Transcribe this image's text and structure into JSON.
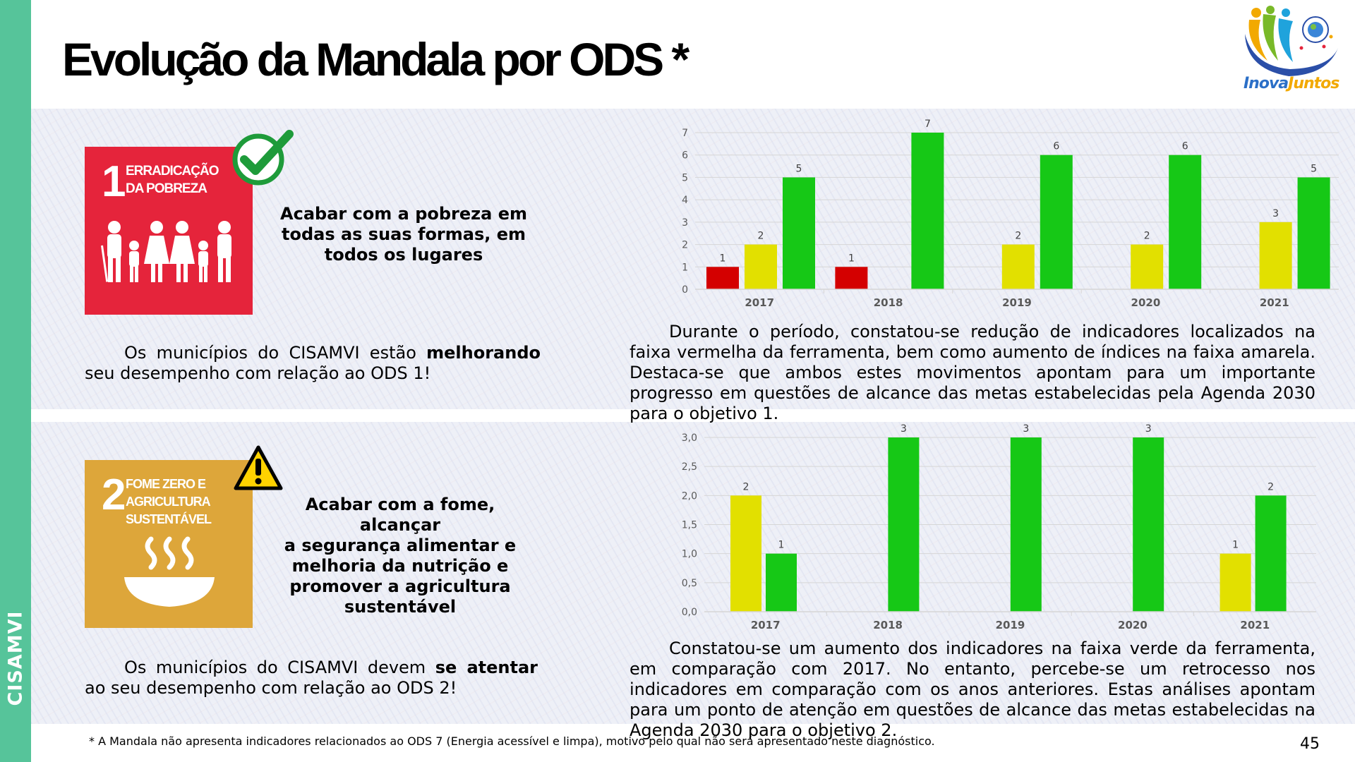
{
  "sidebar": {
    "label": "CISAMVI",
    "color": "#56c49a"
  },
  "title": "Evolução da Mandala por ODS *",
  "logo": {
    "text_a": "Inova",
    "text_b": "Juntos"
  },
  "sections": [
    {
      "ods_number": "1",
      "ods_name_line1": "Erradicação",
      "ods_name_line2": "da pobreza",
      "ods_color": "#e5243b",
      "status_icon": "checkmark-icon",
      "goal_text_lines": [
        "Acabar com a pobreza em",
        "todas as suas formas, em",
        "todos os lugares"
      ],
      "summary_before": "Os municípios do CISAMVI estão ",
      "summary_bold": "melhorando",
      "summary_after": " seu desempenho com relação ao ODS 1!",
      "analysis": "Durante o período, constatou-se redução de indicadores localizados na faixa vermelha da ferramenta, bem como aumento de índices na faixa amarela. Destaca-se que ambos estes movimentos apontam para um importante progresso em questões de alcance das metas estabelecidas pela Agenda 2030 para o objetivo 1."
    },
    {
      "ods_number": "2",
      "ods_name_line1": "Fome zero e",
      "ods_name_line2": "agricultura",
      "ods_name_line3": "sustentável",
      "ods_color": "#dda63a",
      "status_icon": "warning-icon",
      "goal_text_lines": [
        "Acabar com a fome, alcançar",
        "a segurança alimentar e",
        "melhoria da nutrição e",
        "promover a agricultura",
        "sustentável"
      ],
      "summary_before": "Os municípios do CISAMVI devem ",
      "summary_bold": "se atentar",
      "summary_after": " ao seu desempenho com relação ao ODS 2!",
      "analysis": "Constatou-se um aumento dos indicadores na faixa verde da ferramenta, em comparação com 2017. No entanto, percebe-se um retrocesso nos indicadores em comparação com os anos anteriores. Estas análises apontam para um ponto de atenção em questões de alcance das metas estabelecidas na Agenda 2030 para o objetivo 2."
    }
  ],
  "chart_data": [
    {
      "type": "bar",
      "categories": [
        "2017",
        "2018",
        "2019",
        "2020",
        "2021"
      ],
      "series": [
        {
          "name": "Vermelho",
          "color": "#d40000",
          "values": [
            1,
            1,
            null,
            null,
            null
          ]
        },
        {
          "name": "Amarelo",
          "color": "#e2e000",
          "values": [
            2,
            null,
            2,
            2,
            3
          ]
        },
        {
          "name": "Verde",
          "color": "#16c816",
          "values": [
            5,
            7,
            6,
            6,
            5
          ]
        }
      ],
      "ylim": [
        0,
        7
      ],
      "yticks": [
        "0",
        "1",
        "2",
        "3",
        "4",
        "5",
        "6",
        "7"
      ],
      "ytick_values": [
        0,
        1,
        2,
        3,
        4,
        5,
        6,
        7
      ],
      "grid": true
    },
    {
      "type": "bar",
      "categories": [
        "2017",
        "2018",
        "2019",
        "2020",
        "2021"
      ],
      "series": [
        {
          "name": "Vermelho",
          "color": "#d40000",
          "values": [
            null,
            null,
            null,
            null,
            null
          ]
        },
        {
          "name": "Amarelo",
          "color": "#e2e000",
          "values": [
            2,
            null,
            null,
            null,
            1
          ]
        },
        {
          "name": "Verde",
          "color": "#16c816",
          "values": [
            1,
            3,
            3,
            3,
            2
          ]
        }
      ],
      "ylim": [
        0,
        3
      ],
      "yticks": [
        "0,0",
        "0,5",
        "1,0",
        "1,5",
        "2,0",
        "2,5",
        "3,0"
      ],
      "ytick_values": [
        0,
        0.5,
        1,
        1.5,
        2,
        2.5,
        3
      ],
      "grid": true
    }
  ],
  "footnote": "* A Mandala não apresenta indicadores relacionados ao ODS 7 (Energia acessível e limpa), motivo pelo qual não será apresentado neste diagnóstico.",
  "page_number": "45"
}
